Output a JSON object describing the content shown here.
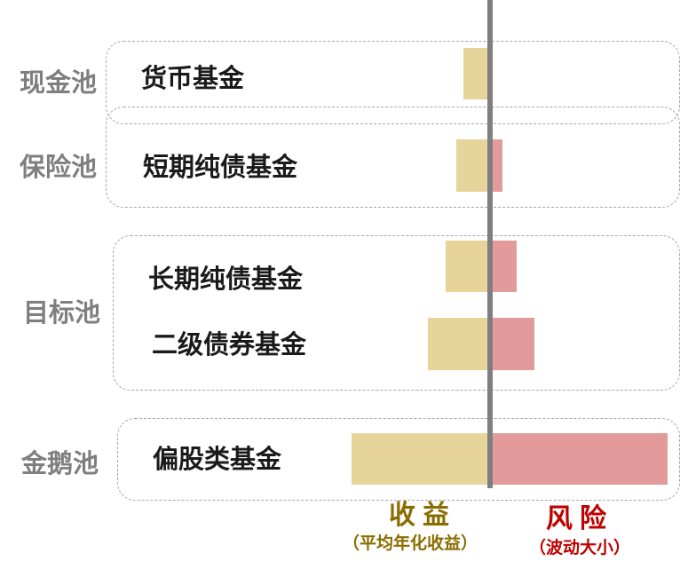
{
  "pools": [
    {
      "name": "现金池",
      "funds": [
        "货币基金"
      ]
    },
    {
      "name": "保险池",
      "funds": [
        "短期纯债基金"
      ]
    },
    {
      "name": "目标池",
      "funds": [
        "长期纯债基金",
        "二级债券基金"
      ]
    },
    {
      "name": "金鹅池",
      "funds": [
        "偏股类基金"
      ]
    }
  ],
  "legend": {
    "return_title": "收益",
    "return_subtitle": "（平均年化收益）",
    "risk_title": "风险",
    "risk_subtitle": "（波动大小）"
  },
  "chart_data": {
    "type": "bar",
    "categories": [
      "货币基金",
      "短期纯债基金",
      "长期纯债基金",
      "二级债券基金",
      "偏股类基金"
    ],
    "series": [
      {
        "name": "收益",
        "values": [
          0.15,
          0.19,
          0.25,
          0.35,
          0.78
        ]
      },
      {
        "name": "风险",
        "values": [
          0,
          0.07,
          0.15,
          0.25,
          1.0
        ]
      }
    ]
  },
  "colors": {
    "return_bar": "#e6d49b",
    "risk_bar": "#e39a9b",
    "return_text": "#8a6d00",
    "risk_text": "#c00000",
    "axis": "#7f7f7f",
    "pool_text": "#7f7f7f"
  }
}
